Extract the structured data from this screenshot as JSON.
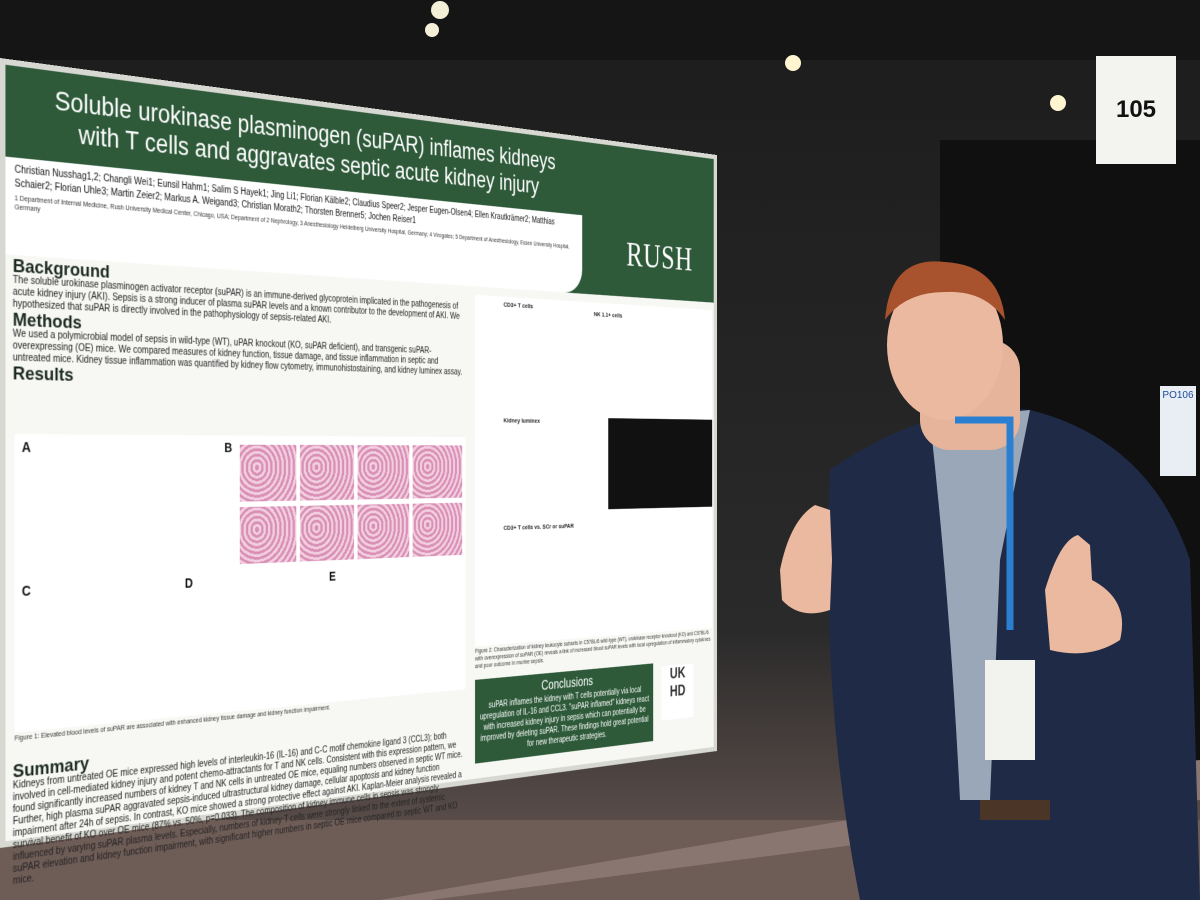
{
  "poster": {
    "title": "Soluble urokinase plasminogen (suPAR) inflames kidneys with T cells and aggravates septic acute kidney injury",
    "authors": "Christian Nusshag1,2; Changli Wei1; Eunsil Hahm1; Salim S Hayek1; Jing Li1; Florian Kälble2; Claudius Speer2; Jesper Eugen-Olsen4; Ellen Krautkrämer2; Matthias Schaier2; Florian Uhle3; Martin Zeier2; Markus A. Weigand3; Christian Morath2; Thorsten Brenner5; Jochen Reiser1",
    "affiliations": "1 Department of Internal Medicine, Rush University Medical Center, Chicago, USA; Department of 2 Nephrology, 3 Anesthesiology Heidelberg University Hospital, Germany; 4 Virogates; 5 Department of Anesthesiology, Essen University Hospital, Germany",
    "logo": "RUSH",
    "background": {
      "heading": "Background",
      "text": "The soluble urokinase plasminogen activator receptor (suPAR) is an immune-derived glycoprotein implicated in the pathogenesis of acute kidney injury (AKI). Sepsis is a strong inducer of plasma suPAR levels and a known contributor to the development of AKI. We hypothesized that suPAR is directly involved in the pathophysiology of sepsis-related AKI."
    },
    "methods": {
      "heading": "Methods",
      "text": "We used a polymicrobial model of sepsis in wild-type (WT), uPAR knockout (KO, suPAR deficient), and transgenic suPAR-overexpressing (OE) mice. We compared measures of kidney function, tissue damage, and tissue inflammation in septic and untreated mice. Kidney tissue inflammation was quantified by kidney flow cytometry, immunohistostaining, and kidney luminex assay."
    },
    "results": {
      "heading": "Results",
      "panels": [
        "A",
        "B",
        "C",
        "D",
        "E"
      ],
      "figure1_caption": "Figure 1: Elevated blood levels of suPAR are associated with enhanced kidney tissue damage and kidney function impairment."
    },
    "summary": {
      "heading": "Summary",
      "text": "Kidneys from untreated OE mice expressed high levels of interleukin-16 (IL-16) and C-C motif chemokine ligand 3 (CCL3); both involved in cell-mediated kidney injury and potent chemo-attractants for T and NK cells. Consistent with this expression pattern, we found significantly increased numbers of kidney T and NK cells in untreated OE mice, equaling numbers observed in septic WT mice. Further, high plasma suPAR aggravated sepsis-induced ultrastructural kidney damage, cellular apoptosis and kidney function impairment after 24h of sepsis. In contrast, KO mice showed a strong protective effect against AKI. Kaplan-Meier analysis revealed a survival benefit of KO over OE mice (87% vs. 50%, p=0.033). The composition of kidney immune cells in sepsis was strongly influenced by varying suPAR plasma levels. Especially, numbers of kidney T cells were strongly linked to the extent of systemic suPAR elevation and kidney function impairment, with significant higher numbers in septic OE mice compared to septic WT and KO mice."
    },
    "figure2": {
      "titles": [
        "CD3+ T cells",
        "NK 1.1+ cells",
        "Kidney luminex",
        "CD3+ T cells vs. SCr or suPAR"
      ],
      "caption": "Figure 2: Characterization of kidney leukocyte subsets in C57BL/6 wild-type (WT), urokinase receptor knockout (KO) and C57BL/6 with overexpression of suPAR (OE) reveals a link of increased blood suPAR levels with local upregulation of inflammatory cytokines and poor outcome in murine sepsis."
    },
    "conclusions": {
      "heading": "Conclusions",
      "text": "suPAR inflames the kidney with T cells potentially via local upregulation of IL-16 and CCL3. \"suPAR inflamed\" kidneys react with increased kidney injury in sepsis which can potentially be improved by deleting suPAR. These findings hold great potential for new therapeutic strategies."
    },
    "corner_logo": "UK HD"
  },
  "booth": {
    "number": "105",
    "poster_id": "PO106"
  }
}
